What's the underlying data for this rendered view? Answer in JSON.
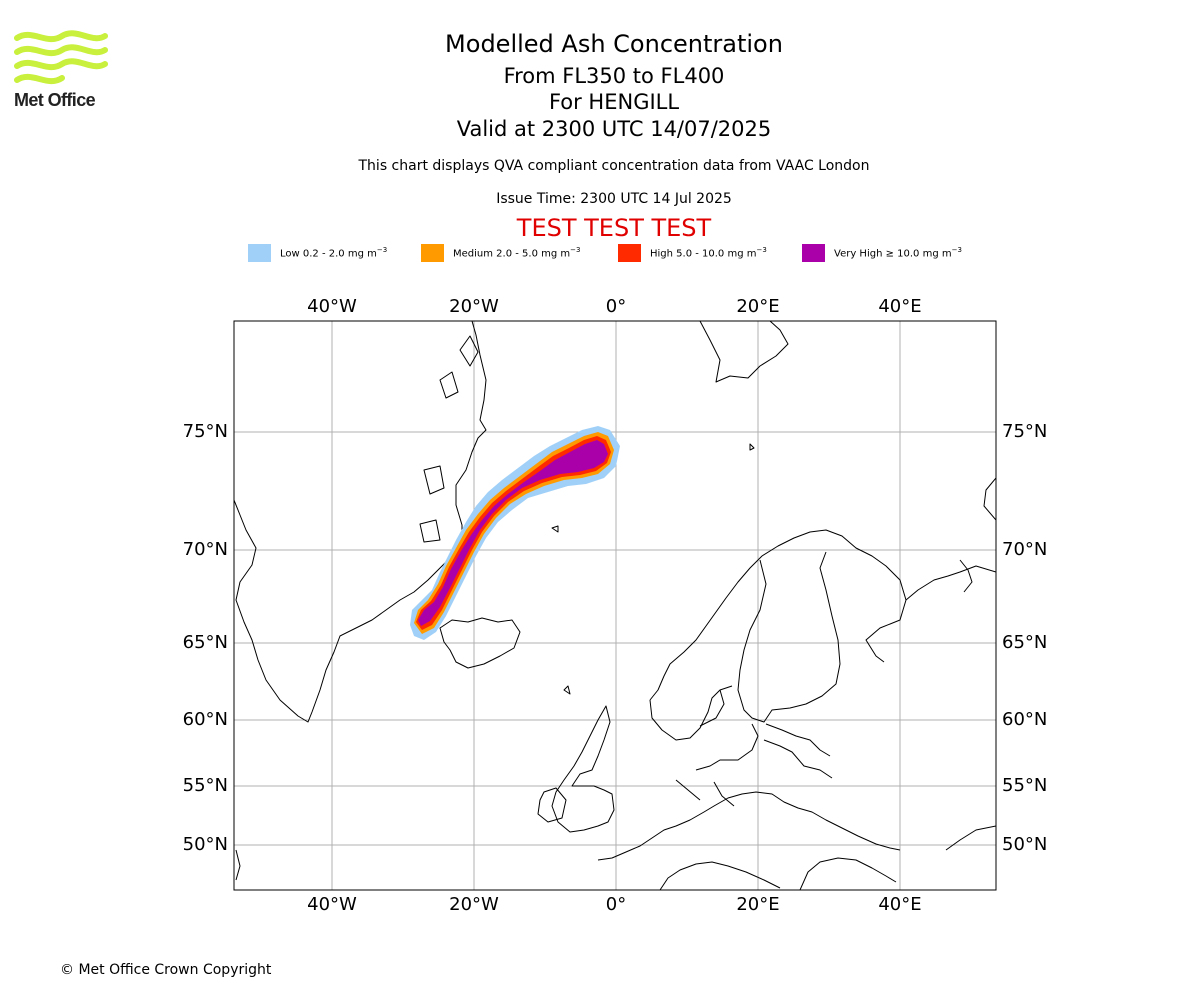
{
  "logo": {
    "name": "Met Office",
    "accent": "#c8f03c"
  },
  "title": "Modelled Ash Concentration",
  "flight_levels": "From FL350 to FL400",
  "location": "For HENGILL",
  "valid_time": "Valid at 2300 UTC 14/07/2025",
  "description": "This chart displays QVA compliant concentration data from VAAC London",
  "issue_time": "Issue Time: 2300 UTC 14 Jul 2025",
  "test_banner": "TEST TEST TEST",
  "test_color": "#e00000",
  "legend": [
    {
      "label": "Low 0.2 - 2.0 mg m",
      "color": "#a0d0f8"
    },
    {
      "label": "Medium 2.0 - 5.0 mg m",
      "color": "#ff9a00"
    },
    {
      "label": "High 5.0 - 10.0 mg m",
      "color": "#ff2a00"
    },
    {
      "label": "Very High ≥ 10.0 mg m",
      "color": "#aa00aa"
    }
  ],
  "legend_unit_exponent": "−3",
  "map": {
    "projection": "polar stereographic",
    "grid": true,
    "lon_labels": [
      "40°W",
      "20°W",
      "0°",
      "20°E",
      "40°E"
    ],
    "lat_labels": [
      "75°N",
      "70°N",
      "65°N",
      "60°N",
      "55°N",
      "50°N"
    ]
  },
  "plume": {
    "source": "HENGILL",
    "extent": {
      "lon_min": -28,
      "lon_max": -1,
      "lat_min": 65,
      "lat_max": 74
    }
  },
  "footer": "© Met Office Crown Copyright"
}
